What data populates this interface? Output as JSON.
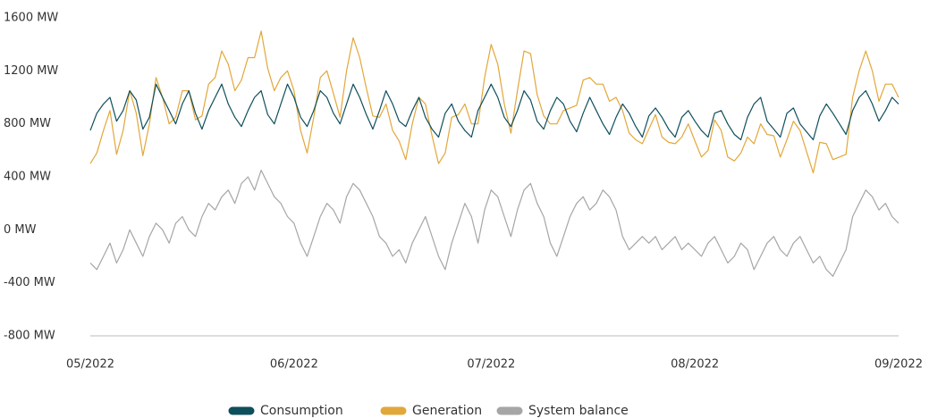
{
  "chart_data": {
    "type": "line",
    "categories": [
      "05/2022",
      null,
      null,
      null,
      null,
      null,
      null,
      null,
      null,
      null,
      null,
      null,
      null,
      null,
      null,
      null,
      null,
      null,
      null,
      null,
      null,
      null,
      null,
      null,
      null,
      null,
      null,
      null,
      null,
      null,
      null,
      "06/2022",
      null,
      null,
      null,
      null,
      null,
      null,
      null,
      null,
      null,
      null,
      null,
      null,
      null,
      null,
      null,
      null,
      null,
      null,
      null,
      null,
      null,
      null,
      null,
      null,
      null,
      null,
      null,
      null,
      null,
      "07/2022",
      null,
      null,
      null,
      null,
      null,
      null,
      null,
      null,
      null,
      null,
      null,
      null,
      null,
      null,
      null,
      null,
      null,
      null,
      null,
      null,
      null,
      null,
      null,
      null,
      null,
      null,
      null,
      null,
      null,
      null,
      "08/2022",
      null,
      null,
      null,
      null,
      null,
      null,
      null,
      null,
      null,
      null,
      null,
      null,
      null,
      null,
      null,
      null,
      null,
      null,
      null,
      null,
      null,
      null,
      null,
      null,
      null,
      null,
      null,
      null,
      null,
      null,
      "09/2022"
    ],
    "series": [
      {
        "name": "System balance",
        "color": "#a6a6a6",
        "values": [
          -250,
          -300,
          -200,
          -100,
          -250,
          -150,
          0,
          -100,
          -200,
          -50,
          50,
          0,
          -100,
          50,
          100,
          0,
          -50,
          100,
          200,
          150,
          250,
          300,
          200,
          350,
          400,
          300,
          450,
          350,
          250,
          200,
          100,
          50,
          -100,
          -200,
          -50,
          100,
          200,
          150,
          50,
          250,
          350,
          300,
          200,
          100,
          -50,
          -100,
          -200,
          -150,
          -250,
          -100,
          0,
          100,
          -50,
          -200,
          -300,
          -100,
          50,
          200,
          100,
          -100,
          150,
          300,
          250,
          100,
          -50,
          150,
          300,
          350,
          200,
          100,
          -100,
          -200,
          -50,
          100,
          200,
          250,
          150,
          200,
          300,
          250,
          150,
          -50,
          -150,
          -100,
          -50,
          -100,
          -50,
          -150,
          -100,
          -50,
          -150,
          -100,
          -150,
          -200,
          -100,
          -50,
          -150,
          -250,
          -200,
          -100,
          -150,
          -300,
          -200,
          -100,
          -50,
          -150,
          -200,
          -100,
          -50,
          -150,
          -250,
          -200,
          -300,
          -350,
          -250,
          -150,
          100,
          200,
          300,
          250,
          150,
          200,
          100,
          50
        ]
      },
      {
        "name": "Generation",
        "color": "#e2a73a",
        "values": [
          500,
          580,
          750,
          900,
          570,
          750,
          1050,
          880,
          560,
          800,
          1150,
          1000,
          800,
          850,
          1050,
          1050,
          830,
          860,
          1100,
          1150,
          1350,
          1250,
          1050,
          1130,
          1300,
          1300,
          1500,
          1220,
          1050,
          1150,
          1200,
          1050,
          750,
          580,
          850,
          1150,
          1200,
          1030,
          850,
          1200,
          1450,
          1300,
          1070,
          860,
          850,
          950,
          750,
          670,
          530,
          800,
          1000,
          950,
          710,
          500,
          580,
          850,
          870,
          950,
          800,
          800,
          1150,
          1400,
          1250,
          950,
          730,
          1050,
          1350,
          1330,
          1020,
          860,
          800,
          800,
          900,
          920,
          940,
          1130,
          1150,
          1100,
          1100,
          970,
          1000,
          900,
          730,
          680,
          650,
          760,
          870,
          700,
          660,
          650,
          700,
          800,
          670,
          550,
          600,
          830,
          750,
          550,
          520,
          580,
          700,
          650,
          800,
          720,
          710,
          550,
          680,
          820,
          750,
          590,
          430,
          660,
          650,
          530,
          550,
          570,
          1000,
          1200,
          1350,
          1200,
          970,
          1100,
          1100,
          1000
        ]
      },
      {
        "name": "Consumption",
        "color": "#0e4f5c",
        "values": [
          750,
          880,
          950,
          1000,
          820,
          900,
          1050,
          980,
          760,
          850,
          1100,
          1000,
          900,
          800,
          950,
          1050,
          880,
          760,
          900,
          1000,
          1100,
          950,
          850,
          780,
          900,
          1000,
          1050,
          870,
          800,
          950,
          1100,
          1000,
          850,
          780,
          900,
          1050,
          1000,
          880,
          800,
          950,
          1100,
          1000,
          870,
          760,
          900,
          1050,
          950,
          820,
          780,
          900,
          1000,
          850,
          760,
          700,
          880,
          950,
          820,
          750,
          700,
          900,
          1000,
          1100,
          1000,
          850,
          780,
          900,
          1050,
          980,
          820,
          760,
          900,
          1000,
          950,
          820,
          740,
          880,
          1000,
          900,
          800,
          720,
          850,
          950,
          880,
          780,
          700,
          860,
          920,
          850,
          760,
          700,
          850,
          900,
          820,
          750,
          700,
          880,
          900,
          800,
          720,
          680,
          850,
          950,
          1000,
          820,
          760,
          700,
          880,
          920,
          800,
          740,
          680,
          860,
          950,
          880,
          800,
          720,
          900,
          1000,
          1050,
          950,
          820,
          900,
          1000,
          950
        ]
      }
    ],
    "legend_order": [
      "Consumption",
      "Generation",
      "System balance"
    ],
    "ylim": [
      -800,
      1600
    ],
    "yticks": [
      {
        "value": -800,
        "label": "-800 MW"
      },
      {
        "value": -400,
        "label": "-400 MW"
      },
      {
        "value": 0,
        "label": "0 MW"
      },
      {
        "value": 400,
        "label": "400 MW"
      },
      {
        "value": 800,
        "label": "800 MW"
      },
      {
        "value": 1200,
        "label": "1200 MW"
      },
      {
        "value": 1600,
        "label": "1600 MW"
      }
    ],
    "grid": false,
    "legend": "bottom"
  }
}
